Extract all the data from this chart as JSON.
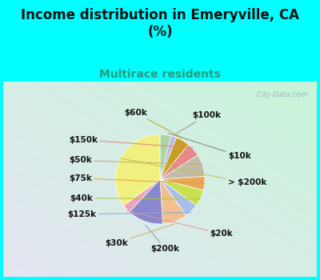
{
  "title": "Income distribution in Emeryville, CA\n(%)",
  "subtitle": "Multirace residents",
  "bg_color": "#00FFFF",
  "chart_bg_left": "#c8ecd8",
  "chart_bg_right": "#d8f0f0",
  "labels": [
    "$10k",
    "$100k",
    "$60k",
    "$150k",
    "$50k",
    "$75k",
    "$40k",
    "$125k",
    "$30k",
    "$200k",
    "$20k",
    "> $200k"
  ],
  "values": [
    4,
    2,
    5,
    5,
    8,
    5,
    6,
    5,
    9,
    13,
    3,
    35
  ],
  "colors": [
    "#a8d8a0",
    "#c0b8e8",
    "#c8a020",
    "#e88888",
    "#c0bca8",
    "#e8a858",
    "#c8e050",
    "#a8c0e8",
    "#f0c090",
    "#8888cc",
    "#f0a0b8",
    "#f0f080"
  ],
  "label_fontsize": 7.5,
  "title_fontsize": 12,
  "subtitle_fontsize": 10,
  "watermark": "   City-Data.com"
}
